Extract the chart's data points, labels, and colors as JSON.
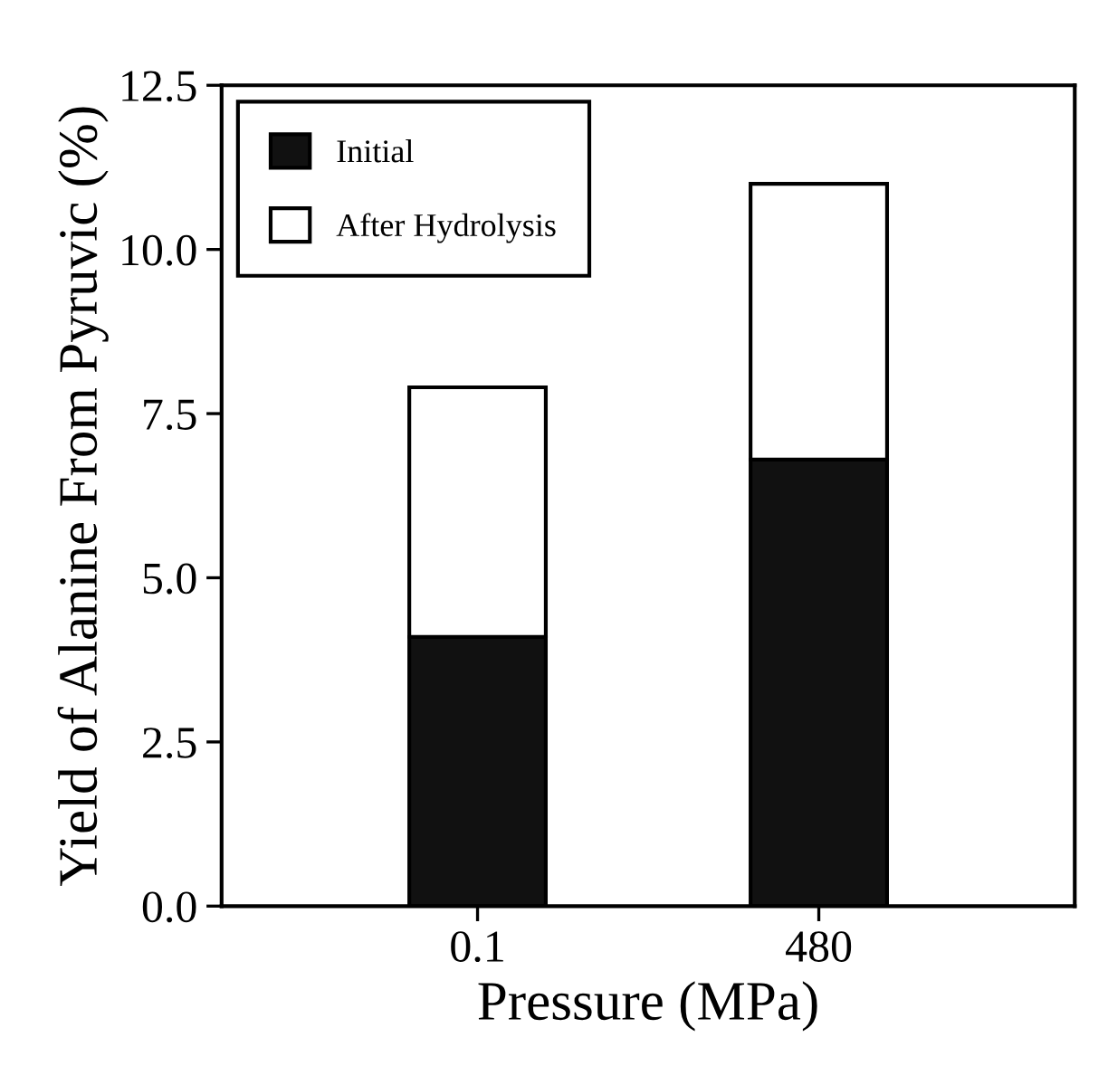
{
  "chart_data": {
    "type": "bar",
    "stacked": true,
    "xlabel": "Pressure (MPa)",
    "ylabel": "Yield of Alanine From Pyruvic (%)",
    "categories": [
      "0.1",
      "480"
    ],
    "series": [
      {
        "name": "Initial",
        "color": "#111111",
        "values": [
          4.1,
          6.8
        ]
      },
      {
        "name": "After Hydrolysis",
        "color": "#ffffff",
        "values": [
          3.8,
          4.2
        ]
      }
    ],
    "ylim": [
      0,
      12.5
    ],
    "yticks": [
      {
        "value": 0,
        "label": "0.0"
      },
      2.5,
      {
        "value": 5,
        "label": "5.0"
      },
      7.5,
      {
        "value": 10,
        "label": "10.0"
      },
      12.5
    ],
    "legend": "top left"
  }
}
